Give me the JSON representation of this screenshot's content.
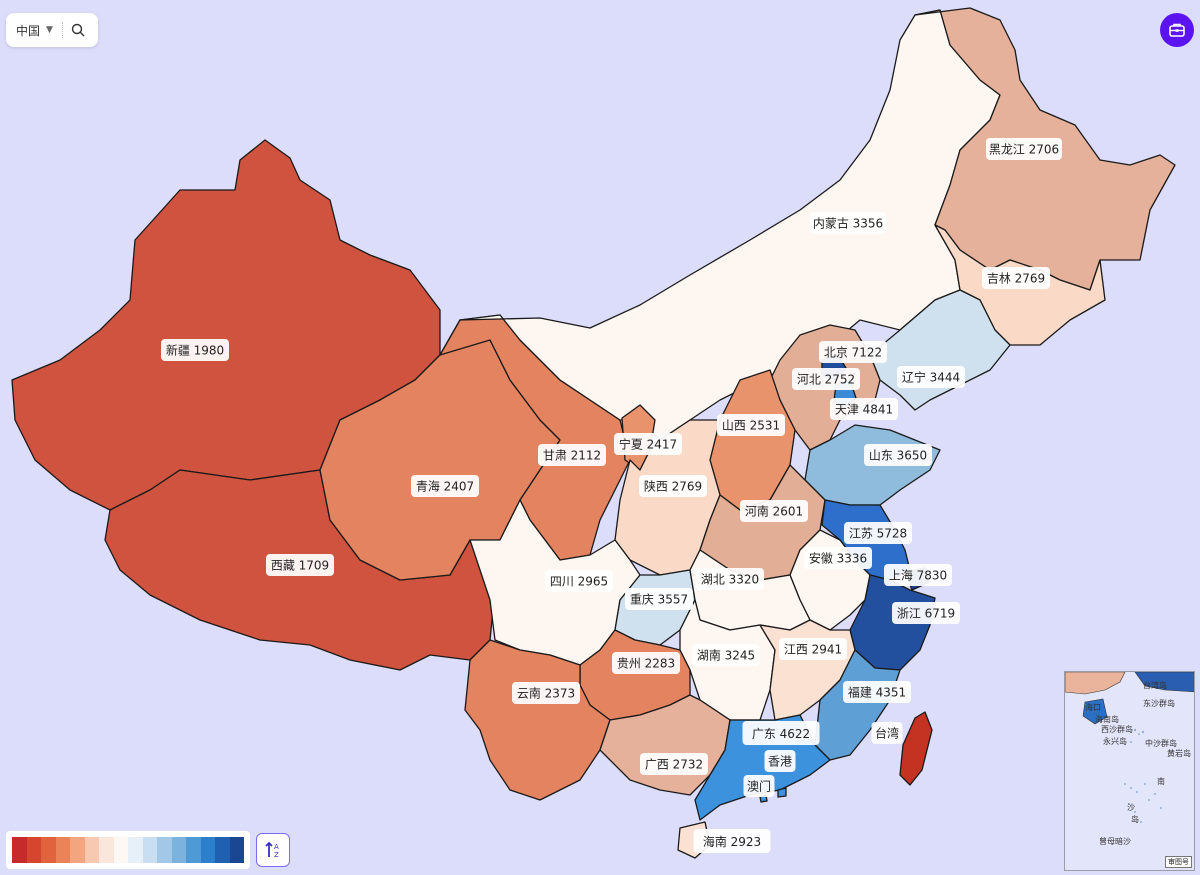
{
  "controls": {
    "region_label": "中国",
    "caret_icon": "caret-down-icon",
    "search_icon": "search-icon",
    "tool_icon": "briefcase-icon"
  },
  "legend": {
    "colors": [
      "#c62a2a",
      "#d6452e",
      "#e0633e",
      "#ea8458",
      "#f2a57f",
      "#f6c9b0",
      "#fbe6db",
      "#fdf8f4",
      "#e7f0f9",
      "#c9def0",
      "#a3c8e7",
      "#7bb2de",
      "#4d9ad6",
      "#2b7fcc",
      "#1f60b1",
      "#1a4692"
    ],
    "sort_icon": "sort-ascending-icon"
  },
  "map": {
    "provinces": [
      {
        "name": "新疆",
        "value": 1980,
        "color": "#cf533f",
        "label": "新疆 1980"
      },
      {
        "name": "西藏",
        "value": 1709,
        "color": "#cf533f",
        "label": "西藏 1709"
      },
      {
        "name": "青海",
        "value": 2407,
        "color": "#e4835f",
        "label": "青海 2407"
      },
      {
        "name": "甘肃",
        "value": 2112,
        "color": "#e4835f",
        "label": "甘肃 2112"
      },
      {
        "name": "内蒙古",
        "value": 3356,
        "color": "#fef6f1",
        "label": "内蒙古 3356"
      },
      {
        "name": "黑龙江",
        "value": 2706,
        "color": "#e5b19a",
        "label": "黑龙江 2706"
      },
      {
        "name": "吉林",
        "value": 2769,
        "color": "#fad9c6",
        "label": "吉林 2769"
      },
      {
        "name": "辽宁",
        "value": 3444,
        "color": "#cfe0ee",
        "label": "辽宁 3444"
      },
      {
        "name": "北京",
        "value": 7122,
        "color": "#1f4f9c",
        "label": "北京 7122"
      },
      {
        "name": "天津",
        "value": 4841,
        "color": "#3a8ad6",
        "label": "天津 4841"
      },
      {
        "name": "河北",
        "value": 2752,
        "color": "#e3ae96",
        "label": "河北 2752"
      },
      {
        "name": "山西",
        "value": 2531,
        "color": "#e9936d",
        "label": "山西 2531"
      },
      {
        "name": "山东",
        "value": 3650,
        "color": "#8fbcdd",
        "label": "山东 3650"
      },
      {
        "name": "宁夏",
        "value": 2417,
        "color": "#e9936d",
        "label": "宁夏 2417"
      },
      {
        "name": "陕西",
        "value": 2769,
        "color": "#fad9c6",
        "label": "陕西 2769"
      },
      {
        "name": "河南",
        "value": 2601,
        "color": "#e3ae96",
        "label": "河南 2601"
      },
      {
        "name": "江苏",
        "value": 5728,
        "color": "#2e6fcc",
        "label": "江苏 5728"
      },
      {
        "name": "安徽",
        "value": 3336,
        "color": "#fef6f1",
        "label": "安徽 3336"
      },
      {
        "name": "上海",
        "value": 7830,
        "color": "#1a3f86",
        "label": "上海 7830"
      },
      {
        "name": "浙江",
        "value": 6719,
        "color": "#234f9f",
        "label": "浙江 6719"
      },
      {
        "name": "四川",
        "value": 2965,
        "color": "#fef6f1",
        "label": "四川 2965"
      },
      {
        "name": "重庆",
        "value": 3557,
        "color": "#cfe0ee",
        "label": "重庆 3557"
      },
      {
        "name": "湖北",
        "value": 3320,
        "color": "#fef6f1",
        "label": "湖北 3320"
      },
      {
        "name": "湖南",
        "value": 3245,
        "color": "#fef6f1",
        "label": "湖南 3245"
      },
      {
        "name": "江西",
        "value": 2941,
        "color": "#fbe1d2",
        "label": "江西 2941"
      },
      {
        "name": "贵州",
        "value": 2283,
        "color": "#e4835f",
        "label": "贵州 2283"
      },
      {
        "name": "云南",
        "value": 2373,
        "color": "#e4835f",
        "label": "云南 2373"
      },
      {
        "name": "福建",
        "value": 4351,
        "color": "#5e9fd6",
        "label": "福建 4351"
      },
      {
        "name": "广西",
        "value": 2732,
        "color": "#e5b19a",
        "label": "广西 2732"
      },
      {
        "name": "广东",
        "value": 4622,
        "color": "#3c92dc",
        "label": "广东 4622"
      },
      {
        "name": "海南",
        "value": 2923,
        "color": "#fbe1d2",
        "label": "海南 2923"
      },
      {
        "name": "台湾",
        "value": null,
        "color": "#c43322",
        "label": "台湾"
      },
      {
        "name": "香港",
        "value": null,
        "color": "#3c92dc",
        "label": "香港"
      },
      {
        "name": "澳门",
        "value": null,
        "color": "#3c92dc",
        "label": "澳门"
      }
    ]
  },
  "inset": {
    "labels": [
      "台湾岛",
      "海南岛",
      "东沙群岛",
      "西沙群岛",
      "中沙群岛",
      "永兴岛",
      "黄岩岛",
      "南",
      "沙",
      "岛",
      "曾母暗沙",
      "海口"
    ],
    "stamp": "审图号"
  }
}
